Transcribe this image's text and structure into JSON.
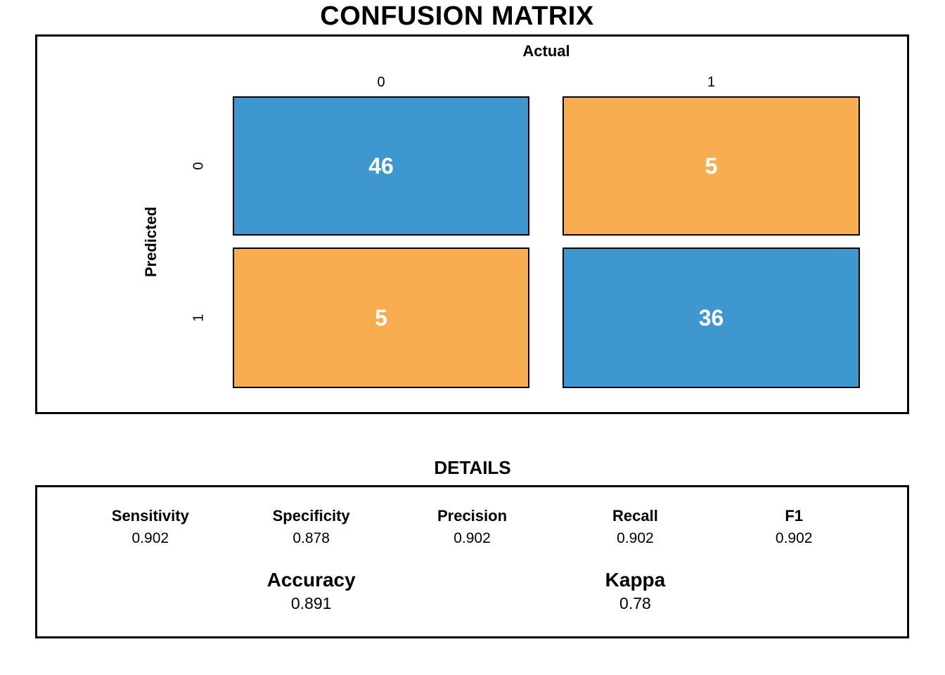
{
  "title": "CONFUSION MATRIX",
  "colors": {
    "match_cell": "#3F97D0",
    "mismatch_cell": "#F7AD50",
    "cell_text": "#FFFFFF",
    "border": "#000000",
    "background": "#FFFFFF"
  },
  "chart_data": {
    "type": "heatmap",
    "title": "CONFUSION MATRIX",
    "xlabel": "Actual",
    "ylabel": "Predicted",
    "x_categories": [
      "0",
      "1"
    ],
    "y_categories": [
      "0",
      "1"
    ],
    "values": [
      [
        46,
        5
      ],
      [
        5,
        36
      ]
    ],
    "cell_colors": [
      [
        "#3F97D0",
        "#F7AD50"
      ],
      [
        "#F7AD50",
        "#3F97D0"
      ]
    ],
    "legend_position": "none",
    "grid": false,
    "stats": {
      "Sensitivity": 0.902,
      "Specificity": 0.878,
      "Precision": 0.902,
      "Recall": 0.902,
      "F1": 0.902,
      "Accuracy": 0.891,
      "Kappa": 0.78
    }
  },
  "details": {
    "heading": "DETAILS",
    "stats": [
      {
        "label": "Sensitivity",
        "value": "0.902"
      },
      {
        "label": "Specificity",
        "value": "0.878"
      },
      {
        "label": "Precision",
        "value": "0.902"
      },
      {
        "label": "Recall",
        "value": "0.902"
      },
      {
        "label": "F1",
        "value": "0.902"
      }
    ],
    "summary": [
      {
        "label": "Accuracy",
        "value": "0.891"
      },
      {
        "label": "Kappa",
        "value": "0.78"
      }
    ]
  }
}
